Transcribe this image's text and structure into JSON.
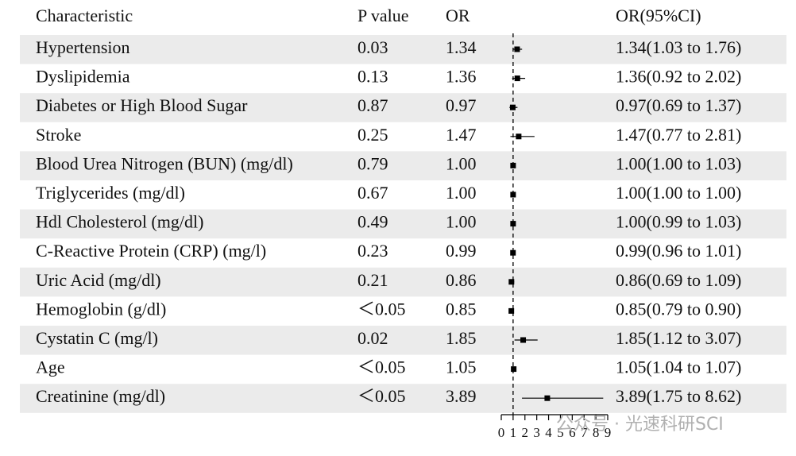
{
  "chart_data": {
    "type": "forest",
    "headers": [
      "Characteristic",
      "P value",
      "OR",
      "OR(95%CI)"
    ],
    "categories": [
      "Hypertension",
      "Dyslipidemia",
      "Diabetes or High Blood Sugar",
      "Stroke",
      "Blood Urea Nitrogen (BUN) (mg/dl)",
      "Triglycerides (mg/dl)",
      "Hdl Cholesterol (mg/dl)",
      "C-Reactive Protein (CRP) (mg/l)",
      "Uric Acid (mg/dl)",
      "Hemoglobin (g/dl)",
      "Cystatin C (mg/l)",
      "Age",
      "Creatinine (mg/dl)"
    ],
    "p_values": [
      "0.03",
      "0.13",
      "0.87",
      "0.25",
      "0.79",
      "0.67",
      "0.49",
      "0.23",
      "0.21",
      "＜0.05",
      "0.02",
      "＜0.05",
      "＜0.05"
    ],
    "values": [
      1.34,
      1.36,
      0.97,
      1.47,
      1.0,
      1.0,
      1.0,
      0.99,
      0.86,
      0.85,
      1.85,
      1.05,
      3.89
    ],
    "value_labels": [
      "1.34",
      "1.36",
      "0.97",
      "1.47",
      "1.00",
      "1.00",
      "1.00",
      "0.99",
      "0.86",
      "0.85",
      "1.85",
      "1.05",
      "3.89"
    ],
    "lower": [
      1.03,
      0.92,
      0.69,
      0.77,
      1.0,
      1.0,
      0.99,
      0.96,
      0.69,
      0.79,
      1.12,
      1.04,
      1.75
    ],
    "upper": [
      1.76,
      2.02,
      1.37,
      2.81,
      1.03,
      1.0,
      1.03,
      1.01,
      1.09,
      0.9,
      3.07,
      1.07,
      8.62
    ],
    "ci_labels": [
      "1.34(1.03 to 1.76)",
      "1.36(0.92 to 2.02)",
      "0.97(0.69 to 1.37)",
      "1.47(0.77 to 2.81)",
      "1.00(1.00 to 1.03)",
      "1.00(1.00 to 1.00)",
      "1.00(0.99 to 1.03)",
      "0.99(0.96 to 1.01)",
      "0.86(0.69 to 1.09)",
      "0.85(0.79 to 0.90)",
      "1.85(1.12 to 3.07)",
      "1.05(1.04 to 1.07)",
      "3.89(1.75 to 8.62)"
    ],
    "reference_line": 1,
    "xlim": [
      0,
      9
    ],
    "xticks": [
      0,
      1,
      2,
      3,
      4,
      5,
      6,
      7,
      8,
      9
    ],
    "color": "#000000",
    "stripe_color": "#ebebeb",
    "watermark": "公众号 · 光速科研SCI"
  }
}
